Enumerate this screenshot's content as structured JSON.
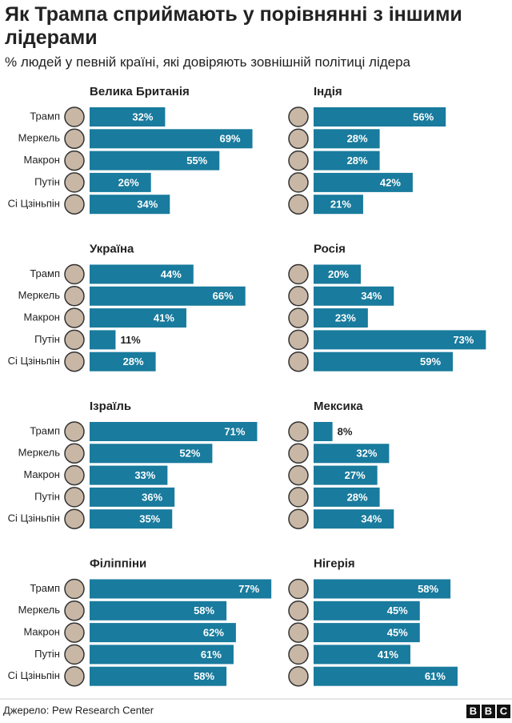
{
  "title": "Як Трампа сприймають у порівнянні з іншими лідерами",
  "subtitle": "% людей у певній країні, які довіряють зовнішній політиці лідера",
  "source": "Джерело: Pew Research Center",
  "logo": [
    "B",
    "B",
    "C"
  ],
  "chart_data": [
    {
      "type": "bar",
      "title": "Велика Британія",
      "categories": [
        "Трамп",
        "Меркель",
        "Макрон",
        "Путін",
        "Сі Цзіньпін"
      ],
      "values": [
        32,
        69,
        55,
        26,
        34
      ],
      "value_labels": [
        "32%",
        "69%",
        "55%",
        "26%",
        "34%"
      ],
      "color": "#197b9d",
      "xlim": [
        0,
        100
      ]
    },
    {
      "type": "bar",
      "title": "Індія",
      "categories": [
        null,
        null,
        null,
        null,
        null
      ],
      "values": [
        56,
        28,
        28,
        42,
        21
      ],
      "value_labels": [
        "56%",
        "28%",
        "28%",
        "42%",
        "21%"
      ],
      "color": "#197b9d",
      "xlim": [
        0,
        100
      ]
    },
    {
      "type": "bar",
      "title": "Україна",
      "categories": [
        "Трамп",
        "Меркель",
        "Макрон",
        "Путін",
        "Сі Цзіньпін"
      ],
      "values": [
        44,
        66,
        41,
        11,
        28
      ],
      "value_labels": [
        "44%",
        "66%",
        "41%",
        "11%",
        "28%"
      ],
      "color": "#197b9d",
      "xlim": [
        0,
        100
      ]
    },
    {
      "type": "bar",
      "title": "Росія",
      "categories": [
        null,
        null,
        null,
        null,
        null
      ],
      "values": [
        20,
        34,
        23,
        73,
        59
      ],
      "value_labels": [
        "20%",
        "34%",
        "23%",
        "73%",
        "59%"
      ],
      "color": "#197b9d",
      "xlim": [
        0,
        100
      ]
    },
    {
      "type": "bar",
      "title": "Ізраїль",
      "categories": [
        "Трамп",
        "Меркель",
        "Макрон",
        "Путін",
        "Сі Цзіньпін"
      ],
      "values": [
        71,
        52,
        33,
        36,
        35
      ],
      "value_labels": [
        "71%",
        "52%",
        "33%",
        "36%",
        "35%"
      ],
      "color": "#197b9d",
      "xlim": [
        0,
        100
      ]
    },
    {
      "type": "bar",
      "title": "Мексика",
      "categories": [
        null,
        null,
        null,
        null,
        null
      ],
      "values": [
        8,
        32,
        27,
        28,
        34
      ],
      "value_labels": [
        "8%",
        "32%",
        "27%",
        "28%",
        "34%"
      ],
      "color": "#197b9d",
      "xlim": [
        0,
        100
      ]
    },
    {
      "type": "bar",
      "title": "Філіппіни",
      "categories": [
        "Трамп",
        "Меркель",
        "Макрон",
        "Путін",
        "Сі Цзіньпін"
      ],
      "values": [
        77,
        58,
        62,
        61,
        58
      ],
      "value_labels": [
        "77%",
        "58%",
        "62%",
        "61%",
        "58%"
      ],
      "color": "#197b9d",
      "xlim": [
        0,
        100
      ]
    },
    {
      "type": "bar",
      "title": "Нігерія",
      "categories": [
        null,
        null,
        null,
        null,
        null
      ],
      "values": [
        58,
        45,
        45,
        41,
        61
      ],
      "value_labels": [
        "58%",
        "45%",
        "45%",
        "41%",
        "61%"
      ],
      "color": "#197b9d",
      "xlim": [
        0,
        100
      ]
    }
  ]
}
